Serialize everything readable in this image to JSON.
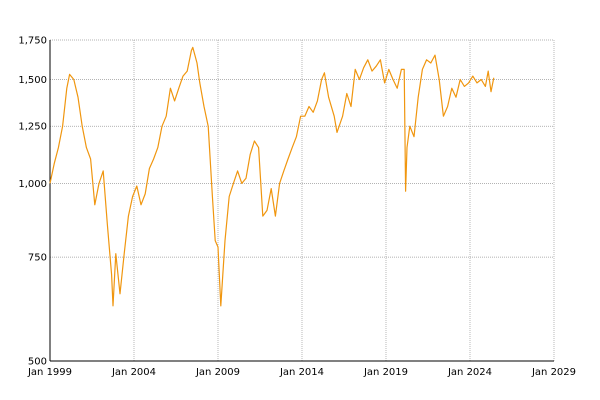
{
  "chart_data": {
    "type": "line",
    "title": "",
    "xlabel": "",
    "ylabel": "",
    "y_scale": "log",
    "ylim": [
      500,
      1750
    ],
    "xlim": [
      "1999-01",
      "2029-01"
    ],
    "grid": true,
    "line_color": "#f0960f",
    "y_ticks": [
      {
        "value": 500,
        "label": "500"
      },
      {
        "value": 750,
        "label": "750"
      },
      {
        "value": 1000,
        "label": "1,000"
      },
      {
        "value": 1250,
        "label": "1,250"
      },
      {
        "value": 1500,
        "label": "1,500"
      },
      {
        "value": 1750,
        "label": "1,750"
      }
    ],
    "x_ticks": [
      {
        "value": "1999-01",
        "label": "Jan 1999"
      },
      {
        "value": "2004-01",
        "label": "Jan 2004"
      },
      {
        "value": "2009-01",
        "label": "Jan 2009"
      },
      {
        "value": "2014-01",
        "label": "Jan 2014"
      },
      {
        "value": "2019-01",
        "label": "Jan 2019"
      },
      {
        "value": "2024-01",
        "label": "Jan 2024"
      },
      {
        "value": "2029-01",
        "label": "Jan 2029"
      }
    ],
    "series": [
      {
        "x": [
          "1999-01",
          "1999-04",
          "1999-07",
          "1999-10",
          "2000-01",
          "2000-03",
          "2000-06",
          "2000-09",
          "2000-12",
          "2001-03",
          "2001-06",
          "2001-09",
          "2001-12",
          "2002-03",
          "2002-06",
          "2002-09",
          "2002-10",
          "2002-12",
          "2003-03",
          "2003-06",
          "2003-09",
          "2003-12",
          "2004-03",
          "2004-06",
          "2004-09",
          "2004-12",
          "2005-03",
          "2005-06",
          "2005-09",
          "2005-12",
          "2006-03",
          "2006-06",
          "2006-09",
          "2006-12",
          "2007-03",
          "2007-06",
          "2007-07",
          "2007-10",
          "2007-12",
          "2008-03",
          "2008-06",
          "2008-09",
          "2008-11",
          "2009-01",
          "2009-03",
          "2009-06",
          "2009-09",
          "2009-12",
          "2010-03",
          "2010-06",
          "2010-09",
          "2010-12",
          "2011-03",
          "2011-06",
          "2011-09",
          "2011-12",
          "2012-03",
          "2012-06",
          "2012-09",
          "2012-12",
          "2013-03",
          "2013-06",
          "2013-09",
          "2013-12",
          "2014-03",
          "2014-06",
          "2014-09",
          "2014-12",
          "2015-03",
          "2015-05",
          "2015-08",
          "2015-12",
          "2016-02",
          "2016-06",
          "2016-09",
          "2016-12",
          "2017-03",
          "2017-06",
          "2017-09",
          "2017-12",
          "2018-03",
          "2018-06",
          "2018-09",
          "2018-12",
          "2019-03",
          "2019-06",
          "2019-09",
          "2019-12",
          "2020-02",
          "2020-03",
          "2020-04",
          "2020-06",
          "2020-09",
          "2020-12",
          "2021-03",
          "2021-06",
          "2021-09",
          "2021-12",
          "2022-03",
          "2022-06",
          "2022-09",
          "2022-12",
          "2023-03",
          "2023-06",
          "2023-09",
          "2023-12",
          "2024-03",
          "2024-06",
          "2024-09",
          "2024-12",
          "2025-02",
          "2025-04",
          "2025-06"
        ],
        "y": [
          1000,
          1080,
          1150,
          1250,
          1450,
          1530,
          1500,
          1400,
          1250,
          1150,
          1100,
          920,
          1000,
          1050,
          850,
          700,
          620,
          760,
          650,
          760,
          880,
          950,
          990,
          920,
          960,
          1060,
          1100,
          1150,
          1250,
          1300,
          1450,
          1380,
          1450,
          1520,
          1550,
          1680,
          1700,
          1600,
          1480,
          1350,
          1250,
          950,
          800,
          780,
          620,
          800,
          950,
          1000,
          1050,
          1000,
          1020,
          1120,
          1180,
          1150,
          880,
          900,
          980,
          880,
          1000,
          1050,
          1100,
          1150,
          1200,
          1300,
          1300,
          1350,
          1320,
          1380,
          1500,
          1540,
          1400,
          1300,
          1220,
          1300,
          1420,
          1350,
          1560,
          1500,
          1570,
          1620,
          1550,
          1580,
          1620,
          1480,
          1560,
          1500,
          1450,
          1560,
          1560,
          970,
          1150,
          1250,
          1200,
          1400,
          1560,
          1620,
          1600,
          1650,
          1500,
          1300,
          1350,
          1450,
          1400,
          1500,
          1460,
          1480,
          1520,
          1480,
          1500,
          1460,
          1550,
          1430,
          1510
        ]
      }
    ]
  }
}
